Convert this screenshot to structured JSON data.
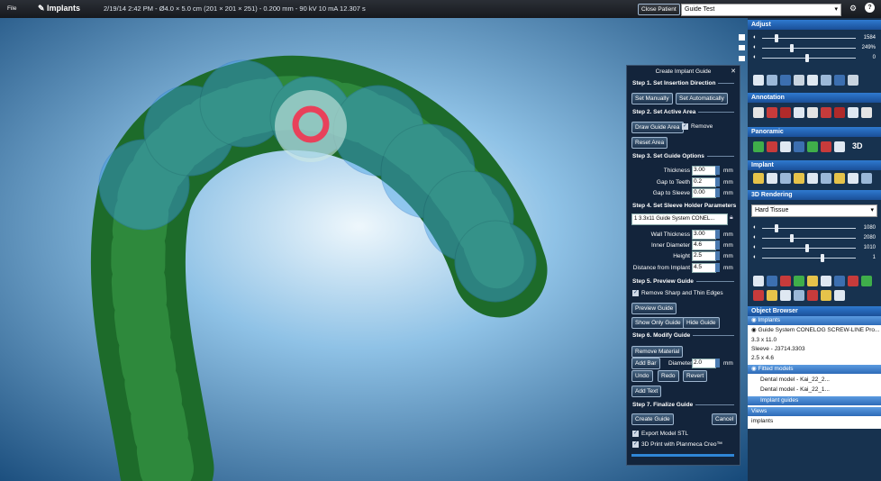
{
  "top_bar": {
    "menu": "File",
    "module": "Implants",
    "scan_info": "2/19/14 2:42 PM - Ø4.0 × 5.0 cm (201 × 201 × 251) - 0.200 mm - 90 kV 10 mA 12.307 s",
    "close_patient": "Close Patient",
    "case_name": "Guide Test"
  },
  "dialog": {
    "title": "Create Implant Guide",
    "step1": {
      "title": "Step 1. Set Insertion Direction",
      "set_manually": "Set Manually",
      "set_automatically": "Set Automatically"
    },
    "step2": {
      "title": "Step 2. Set Active Area",
      "draw_guide_area": "Draw Guide Area",
      "remove": "Remove",
      "reset_area": "Reset Area"
    },
    "step3": {
      "title": "Step 3. Set Guide Options",
      "fields": [
        {
          "label": "Thickness",
          "value": "3.00",
          "unit": "mm"
        },
        {
          "label": "Gap to Teeth",
          "value": "0.2",
          "unit": "mm"
        },
        {
          "label": "Gap to Sleeve",
          "value": "0.00",
          "unit": "mm"
        }
      ]
    },
    "step4": {
      "title": "Step 4. Set Sleeve Holder Parameters",
      "sleeve": "1 3.3x11 Guide System CONEL...",
      "fields": [
        {
          "label": "Wall Thickness",
          "value": "3.00",
          "unit": "mm"
        },
        {
          "label": "Inner Diameter",
          "value": "4.6",
          "unit": "mm"
        },
        {
          "label": "Height",
          "value": "2.5",
          "unit": "mm"
        },
        {
          "label": "Distance from Implant",
          "value": "4.5",
          "unit": "mm"
        }
      ]
    },
    "step5": {
      "title": "Step 5. Preview Guide",
      "remove_edges": "Remove Sharp and Thin Edges",
      "preview_guide": "Preview Guide",
      "show_only_guide": "Show Only Guide",
      "hide_guide": "Hide Guide"
    },
    "step6": {
      "title": "Step 6. Modify Guide",
      "remove_material": "Remove Material",
      "add_bar": "Add Bar",
      "diameter": {
        "label": "Diameter",
        "value": "2.0",
        "unit": "mm"
      },
      "undo": "Undo",
      "redo": "Redo",
      "revert": "Revert",
      "add_text": "Add Text"
    },
    "step7": {
      "title": "Step 7. Finalize Guide",
      "create_guide": "Create Guide",
      "cancel": "Cancel",
      "export_stl": "Export Model STL",
      "print_3d": "3D Print with Planmeca Creo™"
    }
  },
  "right_panel": {
    "adjust": {
      "title": "Adjust",
      "sliders": [
        "1584",
        "249%",
        "0"
      ]
    },
    "annotation": {
      "title": "Annotation"
    },
    "panoramic": {
      "title": "Panoramic",
      "mode": "3D"
    },
    "implant": {
      "title": "Implant"
    },
    "rendering": {
      "title": "3D Rendering",
      "preset": "Hard Tissue",
      "sliders": [
        "1080",
        "2080",
        "1010",
        "1"
      ]
    },
    "object_browser": {
      "title": "Object Browser",
      "implants": {
        "title": "Implants",
        "name": "Guide System CONELOG SCREW-LINE Pro...",
        "size": "3.3 x 11.0",
        "sleeve": "Sleeve - J3714.3303",
        "sleeve_size": "2.5 x 4.6"
      },
      "fitted": {
        "title": "Fitted models",
        "models": [
          "Dental model - Kai_22_2...",
          "Dental model - Kai_22_1..."
        ]
      },
      "guides": {
        "title": "Implant guides"
      },
      "views": {
        "title": "Views",
        "item": "implants"
      }
    }
  }
}
